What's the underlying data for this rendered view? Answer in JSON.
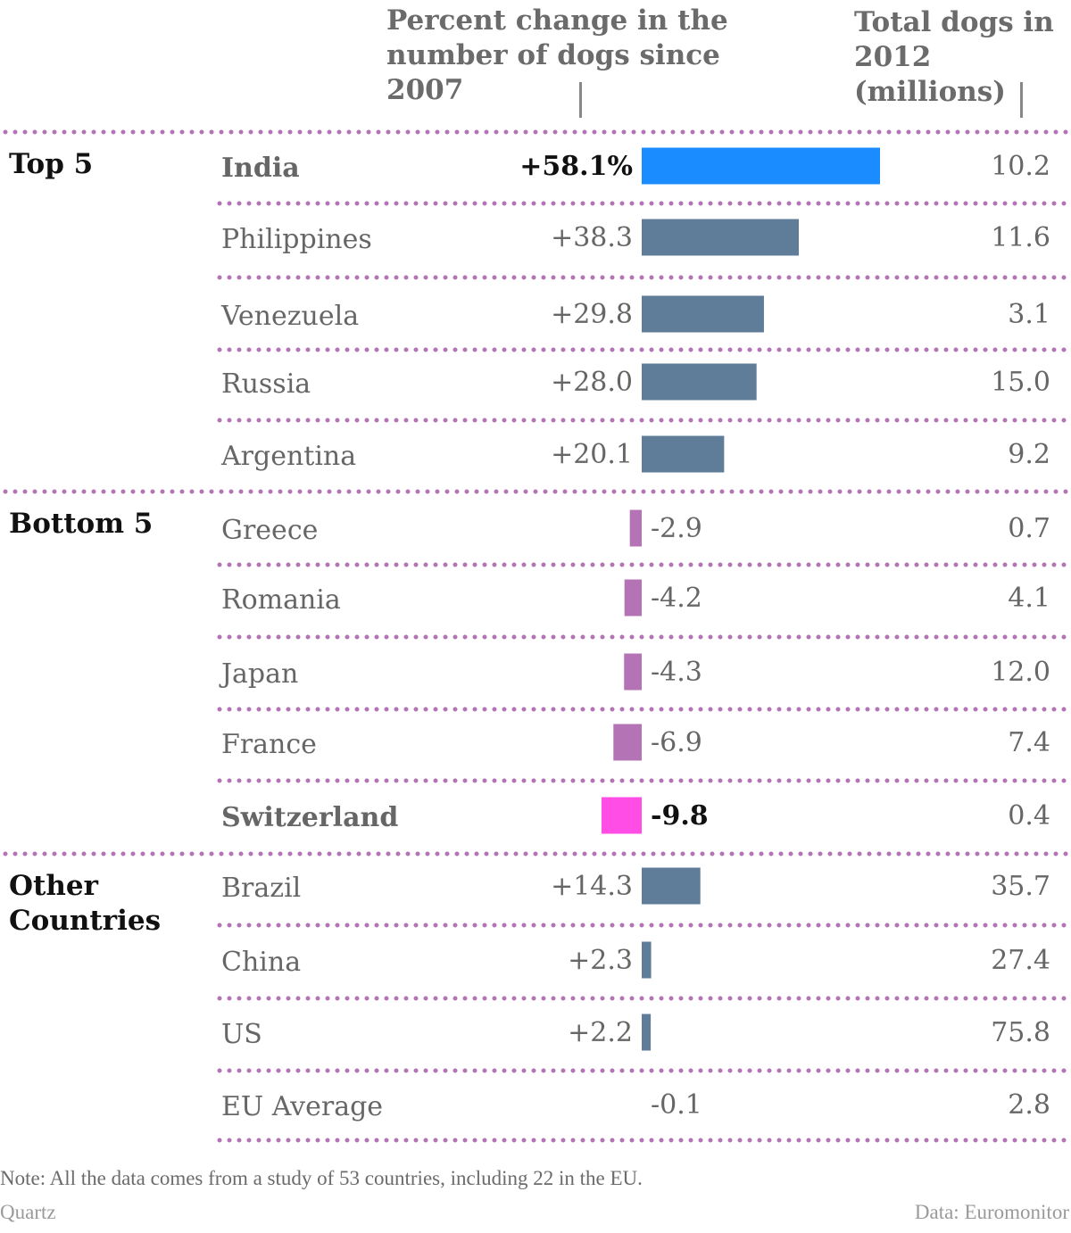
{
  "chart_data": {
    "type": "bar",
    "headers": {
      "change": "Percent change in the number of dogs since 2007",
      "total": "Total dogs in 2012 (millions)"
    },
    "groups": [
      {
        "label": "Top 5",
        "rows": [
          {
            "country": "India",
            "change": 58.1,
            "change_label": "+58.1%",
            "total": "10.2",
            "highlight": true,
            "color": "#1a8cff"
          },
          {
            "country": "Philippines",
            "change": 38.3,
            "change_label": "+38.3",
            "total": "11.6",
            "color": "#5f7d99"
          },
          {
            "country": "Venezuela",
            "change": 29.8,
            "change_label": "+29.8",
            "total": "3.1",
            "color": "#5f7d99"
          },
          {
            "country": "Russia",
            "change": 28.0,
            "change_label": "+28.0",
            "total": "15.0",
            "color": "#5f7d99"
          },
          {
            "country": "Argentina",
            "change": 20.1,
            "change_label": "+20.1",
            "total": "9.2",
            "color": "#5f7d99"
          }
        ]
      },
      {
        "label": "Bottom 5",
        "rows": [
          {
            "country": "Greece",
            "change": -2.9,
            "change_label": "-2.9",
            "total": "0.7",
            "color": "#b473b4"
          },
          {
            "country": "Romania",
            "change": -4.2,
            "change_label": "-4.2",
            "total": "4.1",
            "color": "#b473b4"
          },
          {
            "country": "Japan",
            "change": -4.3,
            "change_label": "-4.3",
            "total": "12.0",
            "color": "#b473b4"
          },
          {
            "country": "France",
            "change": -6.9,
            "change_label": "-6.9",
            "total": "7.4",
            "color": "#b473b4"
          },
          {
            "country": "Switzerland",
            "change": -9.8,
            "change_label": "-9.8",
            "total": "0.4",
            "highlight": true,
            "color": "#ff4de6"
          }
        ]
      },
      {
        "label": "Other Countries",
        "label_lines": [
          "Other",
          "Countries"
        ],
        "rows": [
          {
            "country": "Brazil",
            "change": 14.3,
            "change_label": "+14.3",
            "total": "35.7",
            "color": "#5f7d99"
          },
          {
            "country": "China",
            "change": 2.3,
            "change_label": "+2.3",
            "total": "27.4",
            "color": "#5f7d99"
          },
          {
            "country": "US",
            "change": 2.2,
            "change_label": "+2.2",
            "total": "75.8",
            "color": "#5f7d99"
          },
          {
            "country": "EU Average",
            "change": -0.1,
            "change_label": "-0.1",
            "total": "2.8",
            "color": "#5f7d99"
          }
        ]
      }
    ],
    "note": "Note: All the data comes from a study of 53 countries, including 22 in the EU.",
    "source_left": "Quartz",
    "source_right": "Data: Euromonitor",
    "colors": {
      "divider": "#b473b4",
      "positive": "#5f7d99",
      "negative": "#b473b4"
    }
  }
}
